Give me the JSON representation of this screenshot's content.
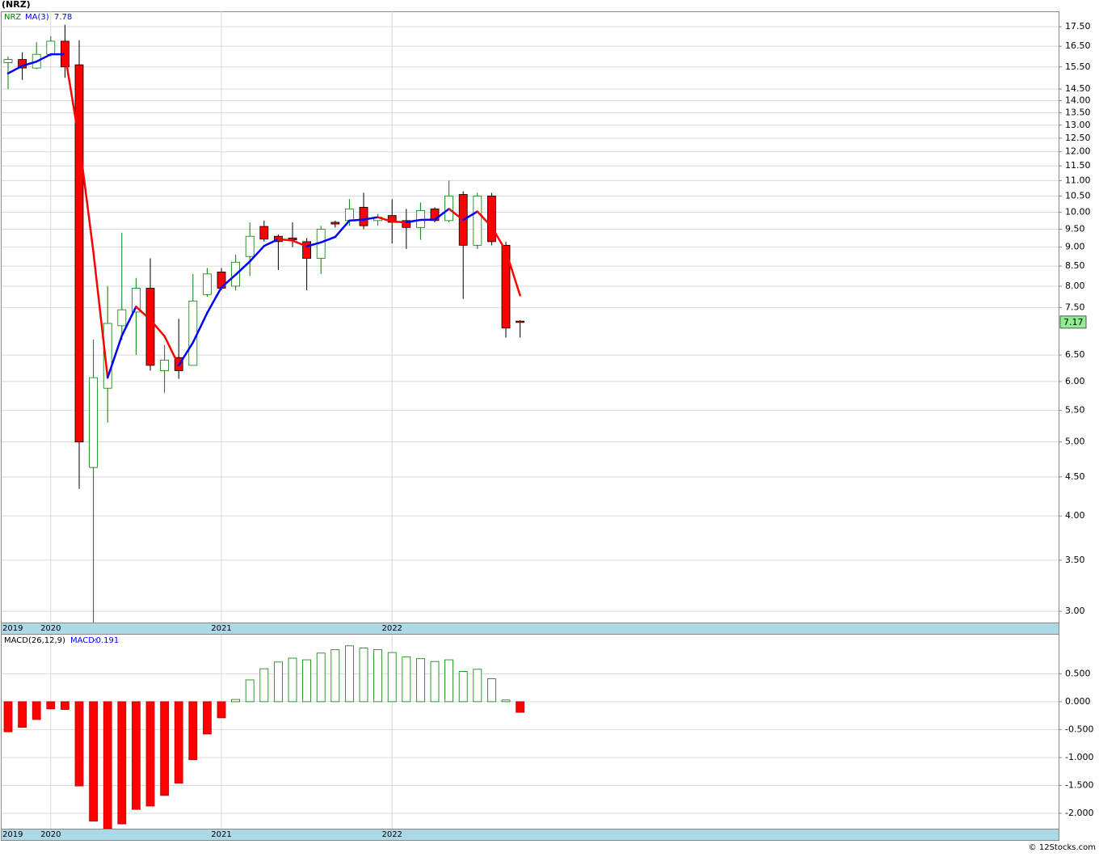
{
  "chart_data": {
    "type": "candlestick",
    "title": "(NRZ)",
    "symbol": "NRZ",
    "axis_start_label": "2019",
    "categories": [
      null,
      null,
      null,
      "2020",
      null,
      null,
      null,
      null,
      null,
      null,
      null,
      null,
      null,
      null,
      null,
      "2021",
      null,
      null,
      null,
      null,
      null,
      null,
      null,
      null,
      null,
      null,
      null,
      "2022",
      null,
      null,
      null,
      null,
      null,
      null,
      null,
      null,
      null
    ],
    "open": [
      15.7,
      15.85,
      15.45,
      16.1,
      16.75,
      15.6,
      4.63,
      5.88,
      7.1,
      7.4,
      7.95,
      6.2,
      6.45,
      6.3,
      7.8,
      8.35,
      8.0,
      8.75,
      9.58,
      9.3,
      9.25,
      9.15,
      8.7,
      9.7,
      9.75,
      10.15,
      9.75,
      9.9,
      9.75,
      9.55,
      10.1,
      9.75,
      10.55,
      9.05,
      10.5,
      9.05,
      7.2
    ],
    "high": [
      16.0,
      16.2,
      16.7,
      17.0,
      17.6,
      16.8,
      6.81,
      8.0,
      9.4,
      8.2,
      8.7,
      6.7,
      7.25,
      8.3,
      8.45,
      8.45,
      8.8,
      9.7,
      9.75,
      9.35,
      9.7,
      9.25,
      9.6,
      9.75,
      10.4,
      10.6,
      9.95,
      10.4,
      10.1,
      10.3,
      10.15,
      11.0,
      10.65,
      10.6,
      10.6,
      9.15,
      7.22
    ],
    "low": [
      14.5,
      14.9,
      15.4,
      16.0,
      15.0,
      4.34,
      2.9,
      5.3,
      6.8,
      6.5,
      6.2,
      5.8,
      6.05,
      6.3,
      7.75,
      7.9,
      7.9,
      8.25,
      9.15,
      8.4,
      9.0,
      7.9,
      8.3,
      9.55,
      9.6,
      9.5,
      9.6,
      9.1,
      8.95,
      9.2,
      9.7,
      9.7,
      7.7,
      8.95,
      9.05,
      6.85,
      6.85
    ],
    "close": [
      15.85,
      15.45,
      16.1,
      16.75,
      15.5,
      5.0,
      6.07,
      7.15,
      7.45,
      7.95,
      6.3,
      6.4,
      6.2,
      7.65,
      8.3,
      7.95,
      8.6,
      9.3,
      9.22,
      9.15,
      9.2,
      8.7,
      9.5,
      9.65,
      10.1,
      9.6,
      9.85,
      9.7,
      9.55,
      10.05,
      9.75,
      10.5,
      9.05,
      10.5,
      9.15,
      7.05,
      7.17
    ],
    "up_color": "#008000",
    "down_color": "#ff0000",
    "ma": {
      "name": "MA(3)",
      "up_color": "#0000ff",
      "down_color": "#ff0000",
      "values": [
        15.2,
        15.55,
        15.75,
        16.1,
        16.1,
        12.4,
        8.86,
        6.07,
        6.89,
        7.52,
        7.23,
        6.88,
        6.3,
        6.75,
        7.38,
        7.97,
        8.28,
        8.62,
        9.03,
        9.22,
        9.18,
        9.02,
        9.13,
        9.28,
        9.75,
        9.78,
        9.85,
        9.72,
        9.7,
        9.77,
        9.78,
        10.1,
        9.77,
        10.02,
        9.57,
        8.9,
        7.78
      ]
    },
    "log_scale": true,
    "grid": true,
    "ylim": [
      2.9,
      18.33
    ],
    "yticks": [
      {
        "value": 17.5,
        "label": "17.50"
      },
      {
        "value": 16.5,
        "label": "16.50"
      },
      {
        "value": 15.5,
        "label": "15.50"
      },
      {
        "value": 14.5,
        "label": "14.50"
      },
      {
        "value": 14,
        "label": "14.00"
      },
      {
        "value": 13.5,
        "label": "13.50"
      },
      {
        "value": 13,
        "label": "13.00"
      },
      {
        "value": 12.5,
        "label": "12.50"
      },
      {
        "value": 12,
        "label": "12.00"
      },
      {
        "value": 11.5,
        "label": "11.50"
      },
      {
        "value": 11,
        "label": "11.00"
      },
      {
        "value": 10.5,
        "label": "10.50"
      },
      {
        "value": 10,
        "label": "10.00"
      },
      {
        "value": 9.5,
        "label": "9.50"
      },
      {
        "value": 9,
        "label": "9.00"
      },
      {
        "value": 8.5,
        "label": "8.50"
      },
      {
        "value": 8,
        "label": "8.00"
      },
      {
        "value": 7.5,
        "label": "7.50"
      },
      {
        "value": 6.5,
        "label": "6.50"
      },
      {
        "value": 6,
        "label": "6.00"
      },
      {
        "value": 5.5,
        "label": "5.50"
      },
      {
        "value": 5,
        "label": "5.00"
      },
      {
        "value": 4.5,
        "label": "4.50"
      },
      {
        "value": 4,
        "label": "4.00"
      },
      {
        "value": 3.5,
        "label": "3.50"
      },
      {
        "value": 3,
        "label": "3.00"
      }
    ],
    "macd": {
      "name": "MACD(26,12,9)",
      "label": "MACD:",
      "values": [
        -0.54,
        -0.46,
        -0.32,
        -0.13,
        -0.14,
        -1.51,
        -2.14,
        -2.27,
        -2.19,
        -1.93,
        -1.87,
        -1.68,
        -1.46,
        -1.04,
        -0.58,
        -0.29,
        0.04,
        0.39,
        0.59,
        0.71,
        0.78,
        0.75,
        0.87,
        0.93,
        1.0,
        0.96,
        0.93,
        0.88,
        0.8,
        0.77,
        0.72,
        0.75,
        0.54,
        0.58,
        0.41,
        0.03,
        -0.191
      ],
      "ylim": [
        -2.275,
        1.2
      ],
      "yticks": [
        {
          "value": 0.5,
          "label": "0.500"
        },
        {
          "value": 0,
          "label": "0.000"
        },
        {
          "value": -0.5,
          "label": "-0.500"
        },
        {
          "value": -1,
          "label": "-1.000"
        },
        {
          "value": -1.5,
          "label": "-1.500"
        },
        {
          "value": -2,
          "label": "-2.000"
        }
      ]
    },
    "footer": "© 12Stocks.com"
  }
}
